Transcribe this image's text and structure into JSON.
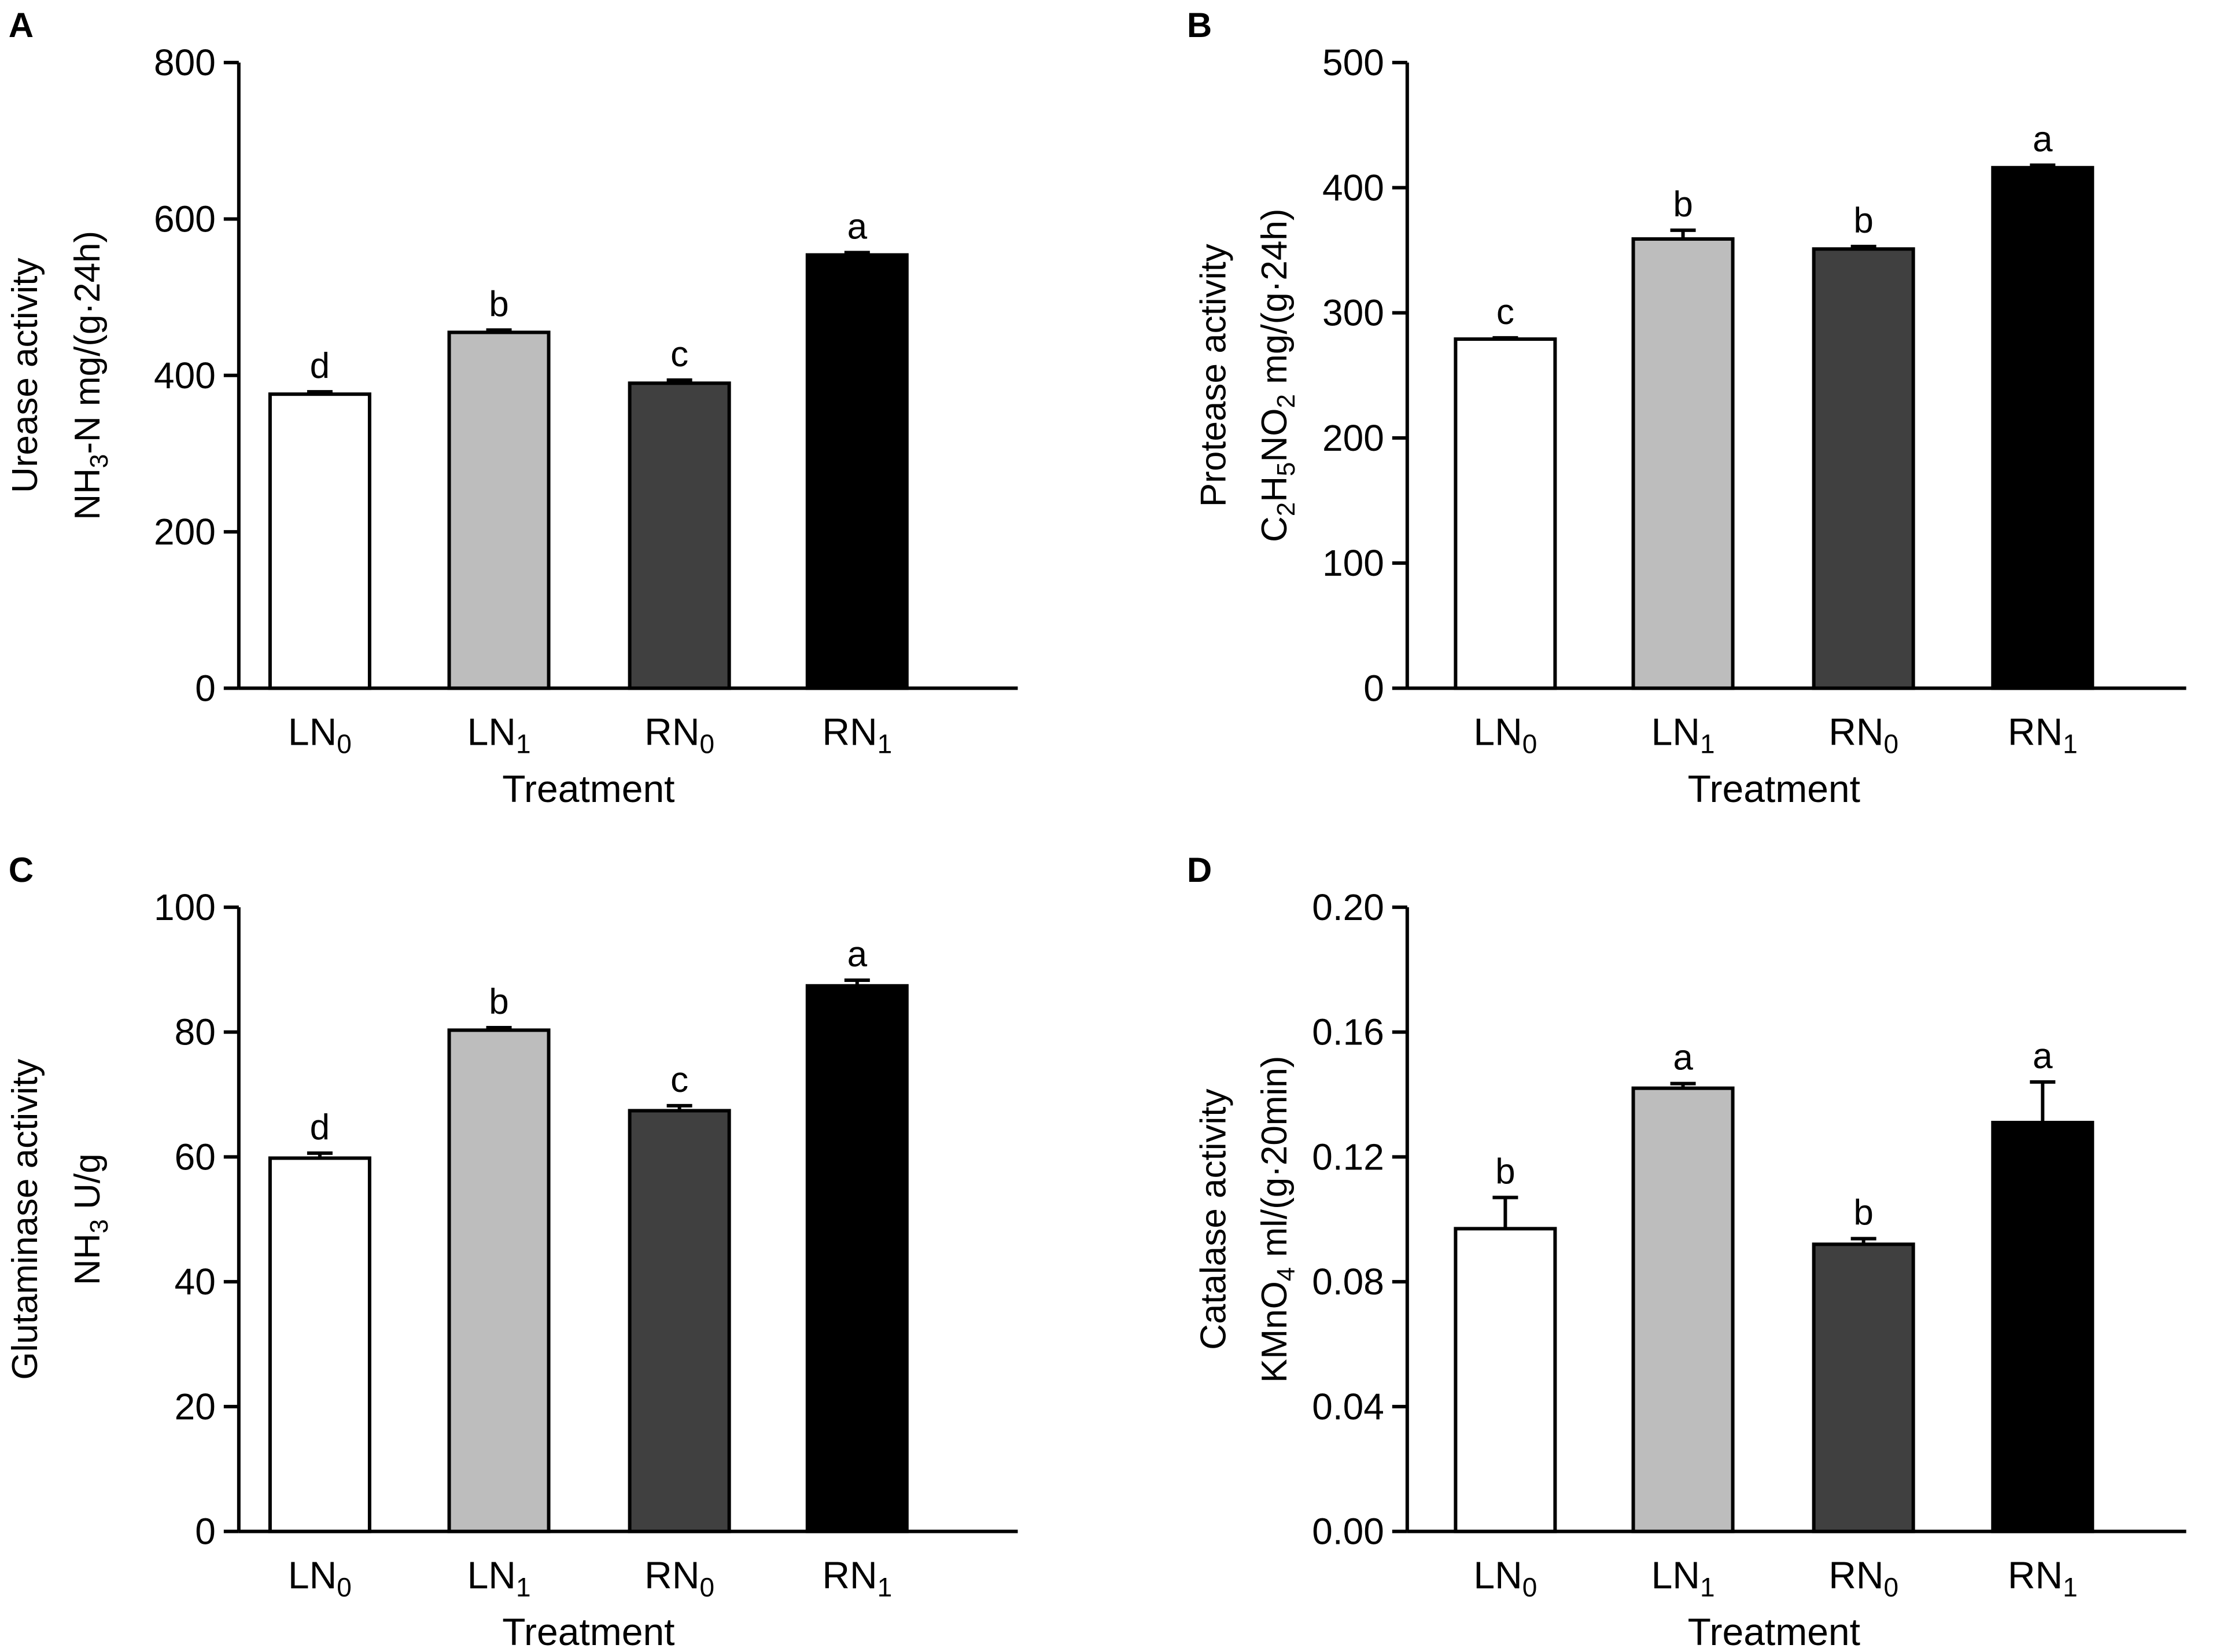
{
  "figure": {
    "panels": [
      {
        "letter": "A",
        "ylabel_line1": "Urease activity",
        "ylabel_line2_parts": [
          {
            "text": "NH",
            "sub": false
          },
          {
            "text": "3",
            "sub": true
          },
          {
            "text": "-N mg/(g·24h)",
            "sub": false
          }
        ],
        "xlabel": "Treatment",
        "tick_labels": [
          "0",
          "200",
          "400",
          "600",
          "800"
        ]
      },
      {
        "letter": "B",
        "ylabel_line1": "Protease  activity",
        "ylabel_line2_parts": [
          {
            "text": "C",
            "sub": false
          },
          {
            "text": "2",
            "sub": true
          },
          {
            "text": "H",
            "sub": false
          },
          {
            "text": "5",
            "sub": true
          },
          {
            "text": "NO",
            "sub": false
          },
          {
            "text": "2",
            "sub": true
          },
          {
            "text": " mg/(g·24h)",
            "sub": false
          }
        ],
        "xlabel": "Treatment",
        "tick_labels": [
          "0",
          "100",
          "200",
          "300",
          "400",
          "500"
        ]
      },
      {
        "letter": "C",
        "ylabel_line1": "Glutaminase activity",
        "ylabel_line2_parts": [
          {
            "text": "NH",
            "sub": false
          },
          {
            "text": "3",
            "sub": true
          },
          {
            "text": " U/g",
            "sub": false
          }
        ],
        "xlabel": "Treatment",
        "tick_labels": [
          "0",
          "20",
          "40",
          "60",
          "80",
          "100"
        ]
      },
      {
        "letter": "D",
        "ylabel_line1": "Catalase activity",
        "ylabel_line2_parts": [
          {
            "text": "KMnO",
            "sub": false
          },
          {
            "text": "4",
            "sub": true
          },
          {
            "text": " ml/(g·20min)",
            "sub": false
          }
        ],
        "xlabel": "Treatment",
        "tick_labels": [
          "0.00",
          "0.04",
          "0.08",
          "0.12",
          "0.16",
          "0.20"
        ]
      }
    ],
    "categories": [
      {
        "base": "LN",
        "sub": "0"
      },
      {
        "base": "LN",
        "sub": "1"
      },
      {
        "base": "RN",
        "sub": "0"
      },
      {
        "base": "RN",
        "sub": "1"
      }
    ],
    "bar_colors": [
      "#ffffff",
      "#bdbdbd",
      "#404040",
      "#000000"
    ],
    "edge_color": "#000000"
  },
  "chart_data": [
    {
      "type": "bar",
      "title": "A",
      "categories": [
        "LN0",
        "LN1",
        "RN0",
        "RN1"
      ],
      "values": [
        376,
        455,
        390,
        554
      ],
      "errors": [
        3,
        3,
        4,
        3
      ],
      "significance": [
        "d",
        "b",
        "c",
        "a"
      ],
      "xlabel": "Treatment",
      "ylabel": "Urease activity NH3-N mg/(g·24h)",
      "ylim": [
        0,
        800
      ],
      "yticks": [
        0,
        200,
        400,
        600,
        800
      ]
    },
    {
      "type": "bar",
      "title": "B",
      "categories": [
        "LN0",
        "LN1",
        "RN0",
        "RN1"
      ],
      "values": [
        279,
        359,
        351,
        416
      ],
      "errors": [
        1,
        7,
        2,
        2
      ],
      "significance": [
        "c",
        "b",
        "b",
        "a"
      ],
      "xlabel": "Treatment",
      "ylabel": "Protease activity C2H5NO2 mg/(g·24h)",
      "ylim": [
        0,
        500
      ],
      "yticks": [
        0,
        100,
        200,
        300,
        400,
        500
      ]
    },
    {
      "type": "bar",
      "title": "C",
      "categories": [
        "LN0",
        "LN1",
        "RN0",
        "RN1"
      ],
      "values": [
        59.8,
        80.3,
        67.4,
        87.4
      ],
      "errors": [
        0.8,
        0.4,
        0.8,
        0.9
      ],
      "significance": [
        "d",
        "b",
        "c",
        "a"
      ],
      "xlabel": "Treatment",
      "ylabel": "Glutaminase activity NH3 U/g",
      "ylim": [
        0,
        100
      ],
      "yticks": [
        0,
        20,
        40,
        60,
        80,
        100
      ]
    },
    {
      "type": "bar",
      "title": "D",
      "categories": [
        "LN0",
        "LN1",
        "RN0",
        "RN1"
      ],
      "values": [
        0.097,
        0.142,
        0.092,
        0.131
      ],
      "errors": [
        0.01,
        0.0015,
        0.0018,
        0.013
      ],
      "significance": [
        "b",
        "a",
        "b",
        "a"
      ],
      "xlabel": "Treatment",
      "ylabel": "Catalase activity KMnO4 ml/(g·20min)",
      "ylim": [
        0,
        0.2
      ],
      "yticks": [
        0,
        0.04,
        0.08,
        0.12,
        0.16,
        0.2
      ]
    }
  ]
}
